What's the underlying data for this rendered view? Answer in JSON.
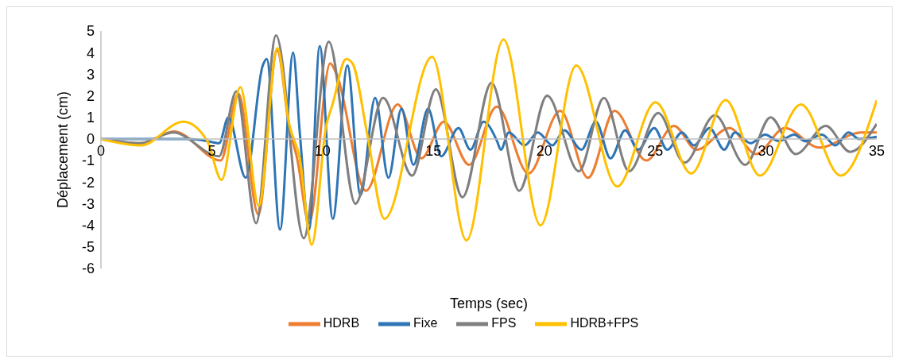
{
  "chart_data": {
    "type": "line",
    "xlabel": "Temps (sec)",
    "ylabel": "Déplacement (cm)",
    "xlim": [
      0,
      35
    ],
    "xticks": [
      0,
      5,
      10,
      15,
      20,
      25,
      30,
      35
    ],
    "ylim": [
      -6,
      5
    ],
    "yticks": [
      -6,
      -5,
      -4,
      -3,
      -2,
      -1,
      0,
      1,
      2,
      3,
      4,
      5
    ],
    "grid": false,
    "legend": "bottom",
    "marker": "none",
    "line_style": "solid",
    "series": [
      {
        "name": "HDRB",
        "color": "#ed7d31",
        "x": [
          0,
          1.8,
          3.3,
          5.4,
          6.2,
          7.1,
          7.95,
          8.5,
          8.85,
          9.39,
          10.34,
          10.63,
          11.95,
          13.39,
          14.46,
          15.47,
          16.61,
          17.86,
          19.29,
          20.72,
          21.98,
          23.17,
          24.6,
          25.85,
          26.87,
          28.36,
          29.55,
          30.86,
          32.41,
          34.3,
          35
        ],
        "values": [
          0,
          -0.2,
          0.35,
          -1.0,
          2.1,
          -3.5,
          4.1,
          0.5,
          -0.9,
          -3.9,
          3.5,
          3.0,
          -2.4,
          1.6,
          -0.9,
          0.8,
          -1.2,
          1.5,
          -1.6,
          1.3,
          -1.8,
          1.3,
          -1.0,
          0.6,
          -0.5,
          0.5,
          -0.7,
          0.5,
          -0.4,
          0.3,
          0.3
        ]
      },
      {
        "name": "Fixe",
        "color": "#2e75b6",
        "x": [
          0,
          2,
          4,
          4.8,
          5.33,
          5.75,
          6.53,
          7.3,
          7.48,
          8.08,
          8.67,
          8.97,
          9.39,
          9.87,
          10.46,
          11.12,
          11.71,
          12.37,
          12.97,
          13.56,
          14.1,
          14.76,
          15.35,
          16.13,
          16.67,
          17.26,
          17.87,
          18.04,
          18.4,
          19.11,
          19.71,
          20.37,
          20.9,
          21.68,
          22.33,
          22.99,
          23.65,
          24.24,
          24.96,
          25.55,
          26.21,
          26.75,
          27.46,
          28.12,
          28.6,
          29.31,
          29.97,
          30.57,
          31.28,
          31.76,
          32.53,
          33.13,
          33.73,
          34.2,
          35
        ],
        "values": [
          0,
          0,
          0,
          -0.1,
          -0.2,
          1.0,
          -1.8,
          3.4,
          3.7,
          -4.2,
          4.0,
          0.3,
          -4.2,
          4.3,
          -3.7,
          3.4,
          -2.6,
          1.9,
          -1.8,
          1.4,
          -1.2,
          1.4,
          -0.8,
          0.5,
          -0.5,
          0.8,
          -0.1,
          -0.5,
          0.3,
          -0.3,
          0.3,
          -0.3,
          0.4,
          -0.5,
          0.8,
          -0.9,
          0.4,
          -0.5,
          0.5,
          -0.5,
          0.3,
          -0.3,
          0.5,
          -0.5,
          0.3,
          -0.2,
          0.2,
          -0.1,
          0.2,
          -0.1,
          0.2,
          -0.3,
          0.3,
          0,
          0.1
        ]
      },
      {
        "name": "FPS",
        "color": "#7f7f7f",
        "x": [
          0,
          1.8,
          3.25,
          5.33,
          6.11,
          7.0,
          7.9,
          9.15,
          10.28,
          11.48,
          12.73,
          14.04,
          15.11,
          16.31,
          17.62,
          18.87,
          20.13,
          21.56,
          22.69,
          23.83,
          25.14,
          26.33,
          27.7,
          29.07,
          30.21,
          31.34,
          32.71,
          33.79,
          35
        ],
        "values": [
          0,
          -0.2,
          0.3,
          -0.8,
          2.2,
          -3.9,
          4.8,
          -4.6,
          4.5,
          -3.0,
          1.9,
          -1.7,
          2.3,
          -2.7,
          2.6,
          -2.4,
          2.0,
          -1.5,
          1.9,
          -1.5,
          1.2,
          -1.1,
          1.1,
          -1.2,
          1.0,
          -0.7,
          0.6,
          -0.6,
          0.7
        ]
      },
      {
        "name": "HDRB+FPS",
        "color": "#ffc000",
        "x": [
          0,
          1.8,
          3.72,
          4.8,
          5.44,
          6.29,
          7.12,
          7.96,
          8.49,
          8.97,
          9.51,
          10.16,
          10.45,
          11.06,
          11.35,
          12.0,
          12.79,
          14.94,
          16.49,
          18.16,
          19.83,
          21.44,
          23.29,
          25.02,
          26.63,
          28.18,
          29.73,
          31.58,
          33.37,
          35
        ],
        "values": [
          0,
          -0.3,
          0.8,
          -0.1,
          -1.9,
          2.4,
          -3.1,
          4.2,
          0.7,
          -0.9,
          -4.9,
          0.6,
          1.6,
          3.7,
          3.5,
          0.3,
          -3.7,
          3.8,
          -4.7,
          4.6,
          -4.0,
          3.4,
          -2.2,
          1.7,
          -1.6,
          1.8,
          -1.7,
          1.6,
          -1.7,
          1.8
        ]
      }
    ]
  }
}
